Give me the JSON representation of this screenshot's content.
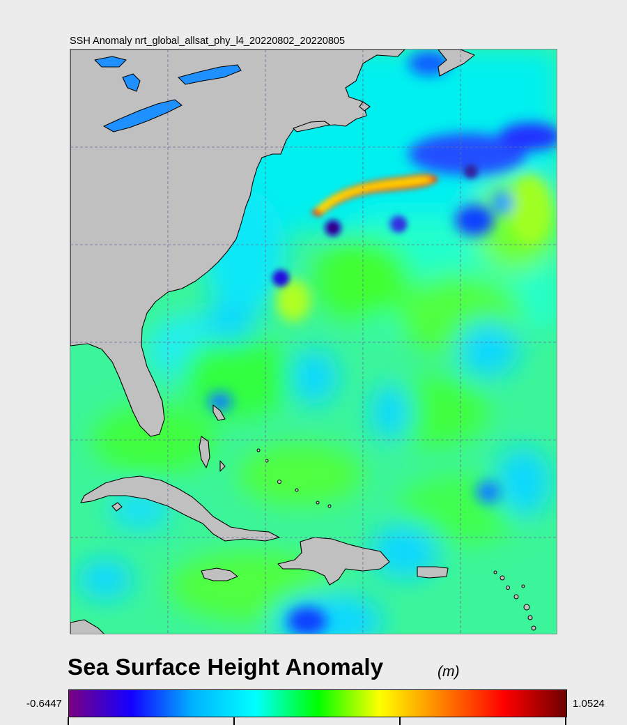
{
  "map": {
    "title": "SSH Anomaly nrt_global_allsat_phy_l4_20220802_20220805",
    "colors": {
      "land": "#c0c0c0",
      "coastline": "#000000",
      "gridline": "#6b6b9a",
      "lakes": "#1e90ff"
    }
  },
  "legend": {
    "title": "Sea Surface Height Anomaly",
    "unit": "(m)",
    "min_label": "-0.6447",
    "max_label": "1.0524",
    "min_value": -0.6447,
    "max_value": 1.0524,
    "colormap": [
      "#7a0080",
      "#1400ff",
      "#00b4ff",
      "#00ffff",
      "#00ff00",
      "#ffff00",
      "#ff8000",
      "#ff0000",
      "#6e0000"
    ]
  }
}
